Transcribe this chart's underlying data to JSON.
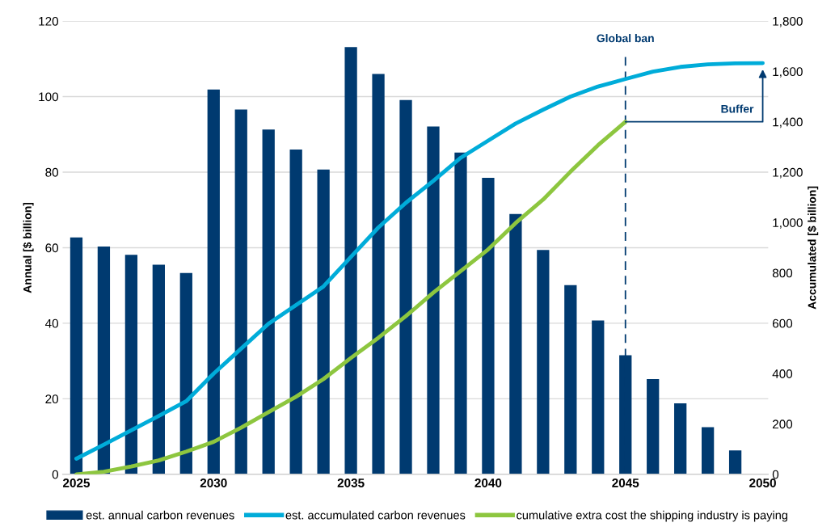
{
  "chart_data": {
    "type": "bar",
    "ylabel": "Annual [$ billion]",
    "y2label": "Accumulated [$ billion]",
    "xlim": [
      2024.5,
      2050.2
    ],
    "xticks": [
      2025,
      2030,
      2035,
      2040,
      2045,
      2050
    ],
    "ylim": [
      0,
      120
    ],
    "yticks": [
      0,
      20,
      40,
      60,
      80,
      100,
      120
    ],
    "y2lim": [
      0,
      1800
    ],
    "y2ticks": [
      0,
      {
        "value": 200,
        "label": "200"
      },
      {
        "value": 400,
        "label": "400"
      },
      {
        "value": 600,
        "label": "600"
      },
      {
        "value": 800,
        "label": "800"
      },
      {
        "value": 1000,
        "label": "1,000"
      },
      {
        "value": 1200,
        "label": "1,200"
      },
      {
        "value": 1400,
        "label": "1,400"
      },
      {
        "value": 1600,
        "label": "1,600"
      },
      {
        "value": 1800,
        "label": "1,800"
      }
    ],
    "grid": "y",
    "legend": "bottom",
    "series": [
      {
        "name": "est. annual carbon revenues",
        "color": "#003a70",
        "x": [
          2025,
          2026,
          2027,
          2028,
          2029,
          2030,
          2031,
          2032,
          2033,
          2034,
          2035,
          2036,
          2037,
          2038,
          2039,
          2040,
          2041,
          2042,
          2043,
          2044,
          2045,
          2046,
          2047,
          2048,
          2049
        ],
        "values": [
          62.7,
          60.3,
          58.1,
          55.5,
          53.3,
          101.9,
          96.6,
          91.3,
          86.0,
          80.7,
          113.1,
          106.0,
          99.1,
          92.1,
          85.2,
          78.5,
          68.9,
          59.4,
          50.1,
          40.7,
          31.5,
          25.2,
          18.8,
          12.5,
          6.3
        ]
      },
      {
        "name": "est. accumulated carbon revenues",
        "type": "line",
        "axis": "y2",
        "color": "#00acd9",
        "x": [
          2025,
          2026,
          2027,
          2028,
          2029,
          2030,
          2031,
          2032,
          2033,
          2034,
          2035,
          2036,
          2037,
          2038,
          2039,
          2040,
          2041,
          2042,
          2043,
          2044,
          2045,
          2046,
          2047,
          2048,
          2049,
          2050
        ],
        "values": [
          62,
          118,
          175,
          232,
          290,
          400,
          499,
          598,
          672,
          746,
          863,
          980,
          1078,
          1165,
          1257,
          1325,
          1393,
          1448,
          1500,
          1540,
          1570,
          1599,
          1618,
          1628,
          1632,
          1633
        ]
      },
      {
        "name": "cumulative extra cost the shipping industry is paying",
        "type": "line",
        "axis": "y2",
        "color": "#8dc63f",
        "x": [
          2025,
          2026,
          2027,
          2028,
          2029,
          2030,
          2031,
          2032,
          2033,
          2034,
          2035,
          2036,
          2037,
          2038,
          2039,
          2040,
          2041,
          2042,
          2043,
          2044,
          2045
        ],
        "values": [
          0,
          10,
          31,
          55,
          90,
          129,
          185,
          247,
          308,
          378,
          462,
          542,
          628,
          721,
          807,
          893,
          998,
          1091,
          1202,
          1307,
          1400
        ]
      }
    ],
    "ref_lines": [
      {
        "axis": "x",
        "value": 2045,
        "label": "Global ban",
        "color": "#003a70",
        "line_style": "dashed"
      }
    ],
    "annotations": [
      "Buffer"
    ]
  }
}
